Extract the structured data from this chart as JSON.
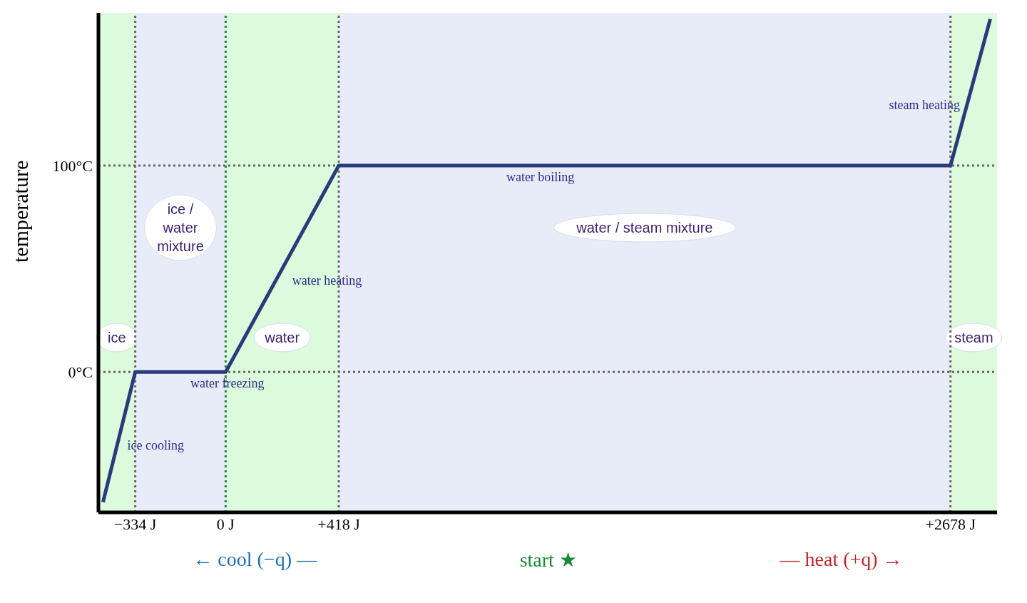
{
  "chart_data": {
    "type": "line",
    "ylabel": "temperature",
    "series": [
      {
        "color": "#2b3a7a",
        "x": [
          -453,
          -334,
          0,
          418,
          2678,
          2825
        ],
        "values": [
          -63,
          0,
          0,
          100,
          100,
          171
        ]
      }
    ],
    "xlim": [
      -470,
      2850
    ],
    "ylim": [
      -68,
      174
    ],
    "xticks": [
      {
        "value": -334,
        "label": "−334 J"
      },
      {
        "value": 0,
        "label": "0 J"
      },
      {
        "value": 418,
        "label": "+418 J"
      },
      {
        "value": 2678,
        "label": "+2678 J"
      }
    ],
    "yticks": [
      {
        "value": 0,
        "label": "0°C"
      },
      {
        "value": 100,
        "label": "100°C"
      }
    ],
    "bands": [
      {
        "axis": "x",
        "from": -470,
        "to": -334,
        "label": "ice",
        "color": "#dcfadc"
      },
      {
        "axis": "x",
        "from": -334,
        "to": 0,
        "label": "ice / water mixture",
        "color": "#e8ecf8"
      },
      {
        "axis": "x",
        "from": 0,
        "to": 418,
        "label": "water",
        "color": "#dcfadc"
      },
      {
        "axis": "x",
        "from": 418,
        "to": 2678,
        "label": "water / steam mixture",
        "color": "#e8ecf8"
      },
      {
        "axis": "x",
        "from": 2678,
        "to": 2850,
        "label": "steam",
        "color": "#dcfadc"
      }
    ],
    "ref_lines": [
      {
        "axis": "y",
        "value": 0,
        "color": "#666666",
        "line_style": "dotted"
      },
      {
        "axis": "y",
        "value": 100,
        "color": "#666666",
        "line_style": "dotted"
      },
      {
        "axis": "x",
        "value": -334,
        "color": "#666666",
        "line_style": "dotted"
      },
      {
        "axis": "x",
        "value": 0,
        "color": "#1a8a3a",
        "line_style": "dotted"
      },
      {
        "axis": "x",
        "value": 418,
        "color": "#666666",
        "line_style": "dotted"
      },
      {
        "axis": "x",
        "value": 2678,
        "color": "#666666",
        "line_style": "dotted"
      }
    ],
    "annotations": [
      {
        "text": "ice cooling",
        "x": -400,
        "y": -30
      },
      {
        "text": "water freezing",
        "x": -167,
        "y": 0
      },
      {
        "text": "water heating",
        "x": 209,
        "y": 50
      },
      {
        "text": "water boiling",
        "x": 1000,
        "y": 100
      },
      {
        "text": "steam heating",
        "x": 2750,
        "y": 135
      },
      "← cool (−q) —",
      "start ★",
      "— heat (+q) →"
    ],
    "grid": false,
    "marker": "none",
    "line_style": "solid"
  }
}
